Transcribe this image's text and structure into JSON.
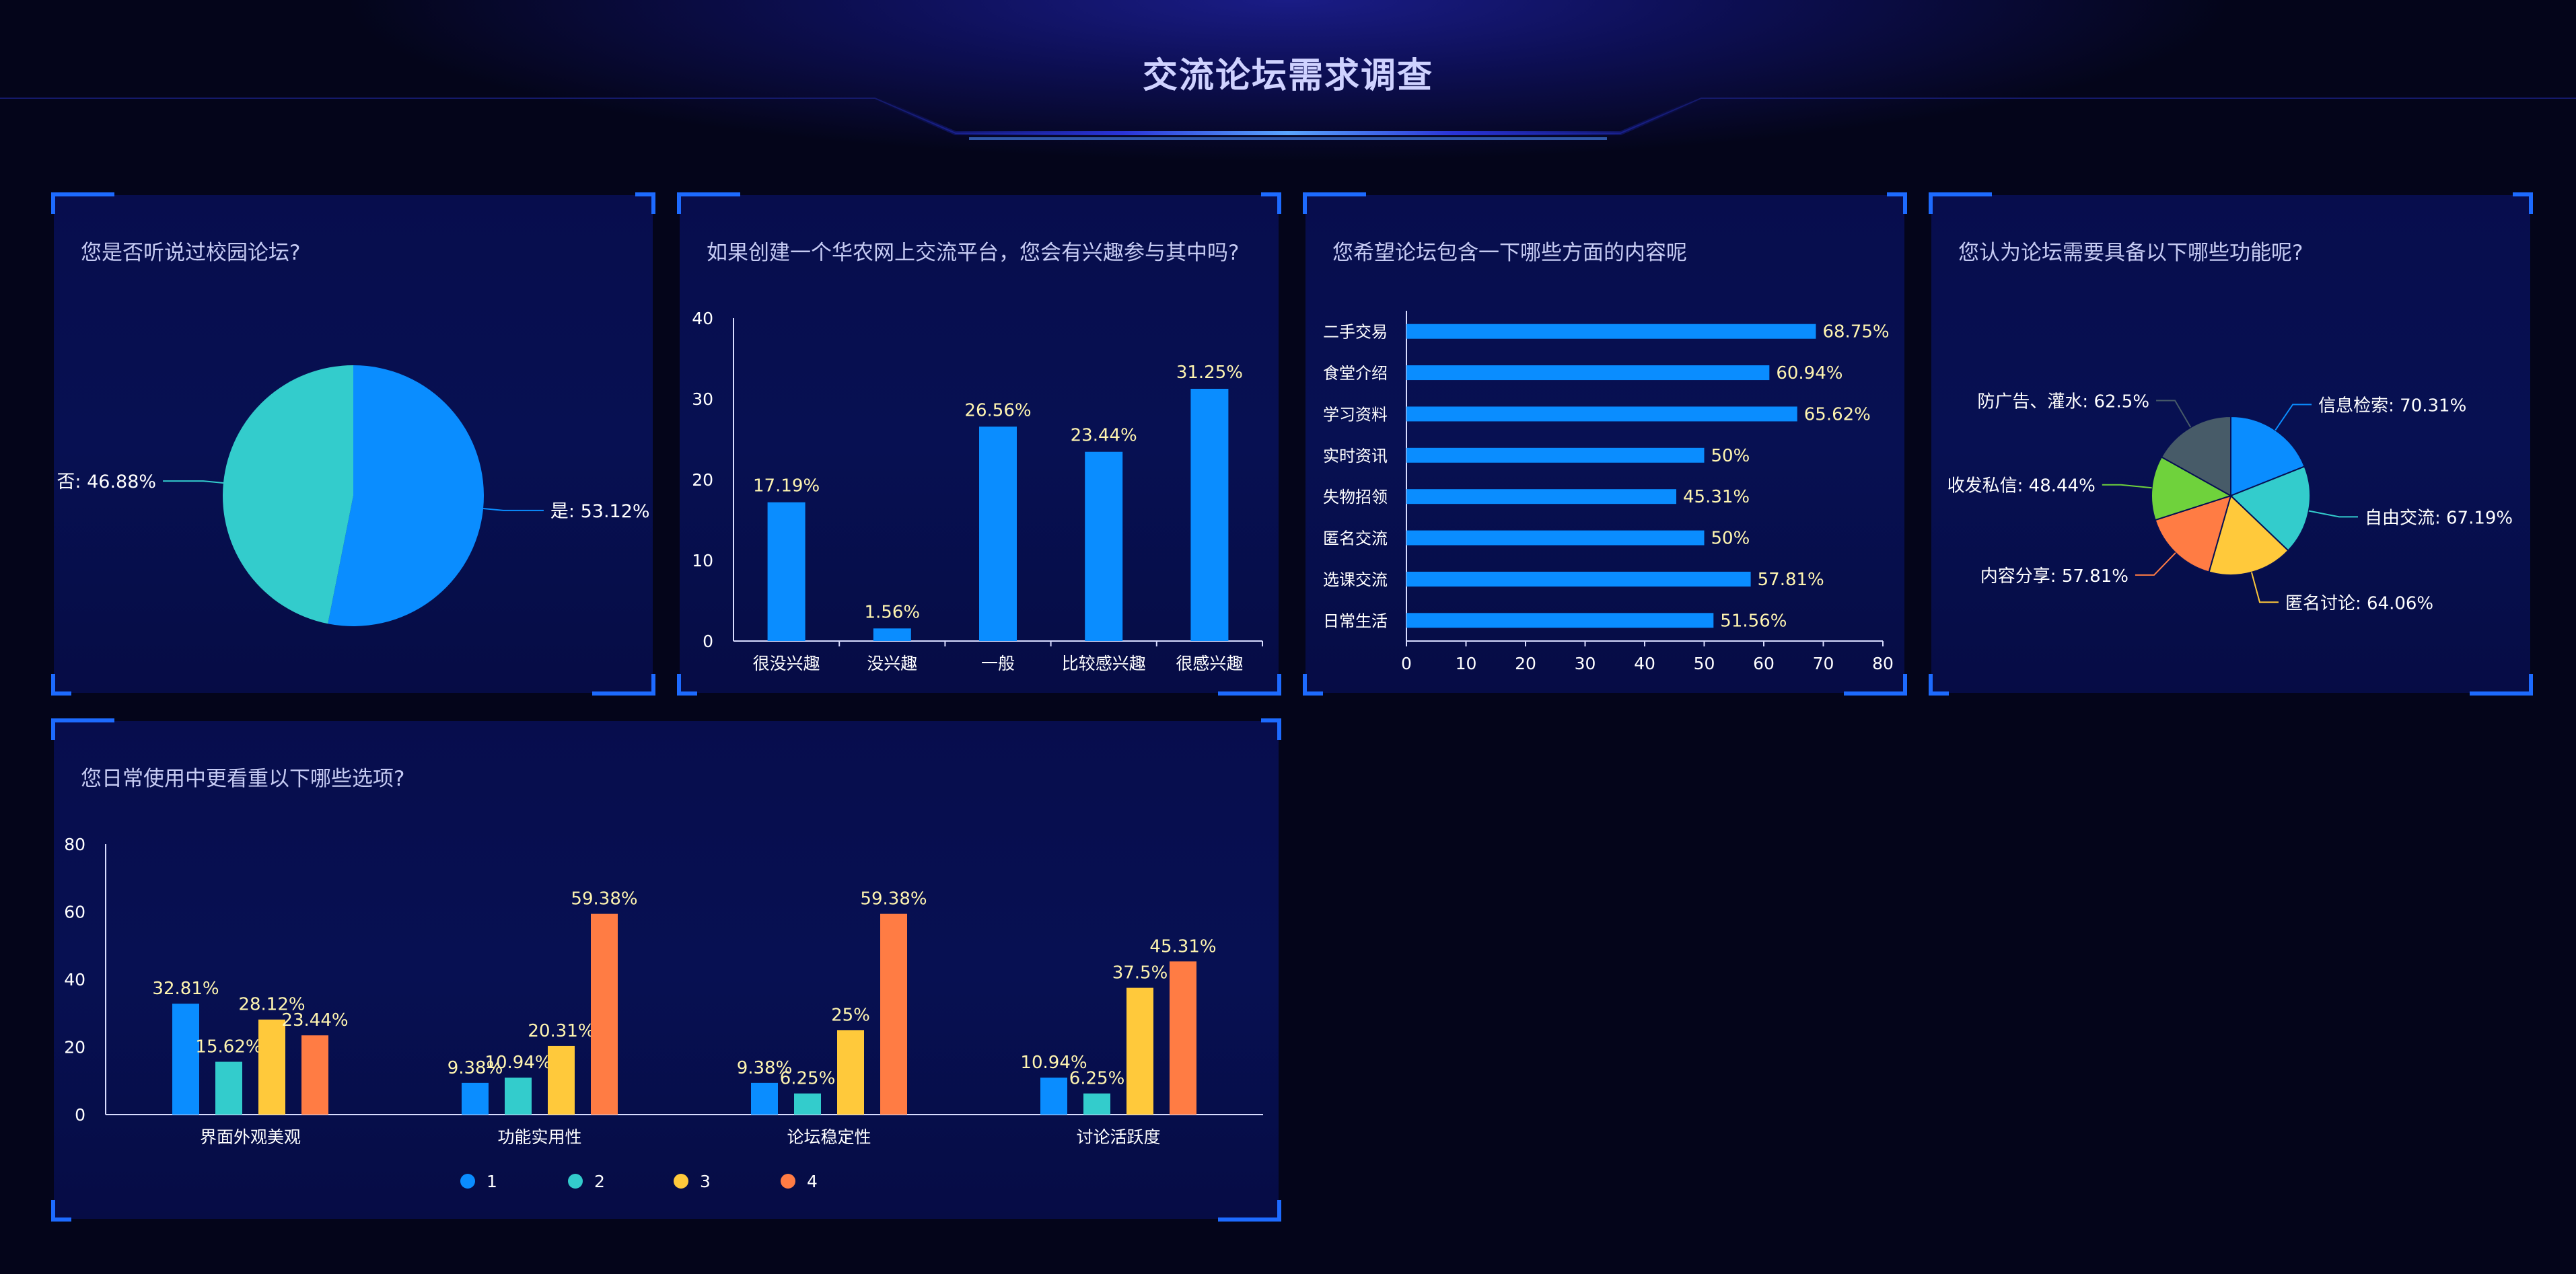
{
  "page_title": "交流论坛需求调查",
  "colors": {
    "blue": "#0a8dff",
    "teal": "#33cccc",
    "yellow": "#ffc93b",
    "orange": "#ff7c44",
    "green": "#6fd23c",
    "slate": "#475b68",
    "accent": "#1d6bff"
  },
  "panels": {
    "p1": {
      "title": "您是否听说过校园论坛?"
    },
    "p2": {
      "title": "如果创建一个华农网上交流平台，您会有兴趣参与其中吗?"
    },
    "p3": {
      "title": "您希望论坛包含一下哪些方面的内容呢"
    },
    "p4": {
      "title": "您认为论坛需要具备以下哪些功能呢?"
    },
    "p5": {
      "title": "您日常使用中更看重以下哪些选项?"
    }
  },
  "chart_data": [
    {
      "id": "p1",
      "type": "pie",
      "slices": [
        {
          "label": "是",
          "value": 53.12,
          "display": "是: 53.12%",
          "color": "#0a8dff"
        },
        {
          "label": "否",
          "value": 46.88,
          "display": "否: 46.88%",
          "color": "#33cccc"
        }
      ]
    },
    {
      "id": "p2",
      "type": "bar",
      "categories": [
        "很没兴趣",
        "没兴趣",
        "一般",
        "比较感兴趣",
        "很感兴趣"
      ],
      "values": [
        17.19,
        1.56,
        26.56,
        23.44,
        31.25
      ],
      "value_labels": [
        "17.19%",
        "1.56%",
        "26.56%",
        "23.44%",
        "31.25%"
      ],
      "ylim": [
        0,
        40
      ],
      "yticks": [
        0,
        10,
        20,
        30,
        40
      ],
      "ytick_labels": [
        "0",
        "10",
        "20",
        "30",
        "40"
      ],
      "color": "#0a8dff"
    },
    {
      "id": "p3",
      "type": "bar",
      "orientation": "horizontal",
      "categories": [
        "二手交易",
        "食堂介绍",
        "学习资料",
        "实时资讯",
        "失物招领",
        "匿名交流",
        "选课交流",
        "日常生活"
      ],
      "values": [
        68.75,
        60.94,
        65.62,
        50,
        45.31,
        50,
        57.81,
        51.56
      ],
      "value_labels": [
        "68.75%",
        "60.94%",
        "65.62%",
        "50%",
        "45.31%",
        "50%",
        "57.81%",
        "51.56%"
      ],
      "xlim": [
        0,
        80
      ],
      "xticks": [
        0,
        10,
        20,
        30,
        40,
        50,
        60,
        70,
        80
      ],
      "xtick_labels": [
        "0",
        "10",
        "20",
        "30",
        "40",
        "50",
        "60",
        "70",
        "80"
      ],
      "color": "#0a8dff"
    },
    {
      "id": "p4",
      "type": "pie",
      "slices": [
        {
          "label": "信息检索",
          "value": 70.31,
          "display": "信息检索: 70.31%",
          "color": "#0a8dff"
        },
        {
          "label": "自由交流",
          "value": 67.19,
          "display": "自由交流: 67.19%",
          "color": "#33cccc"
        },
        {
          "label": "匿名讨论",
          "value": 64.06,
          "display": "匿名讨论: 64.06%",
          "color": "#ffc93b"
        },
        {
          "label": "内容分享",
          "value": 57.81,
          "display": "内容分享: 57.81%",
          "color": "#ff7c44"
        },
        {
          "label": "收发私信",
          "value": 48.44,
          "display": "收发私信: 48.44%",
          "color": "#6fd23c"
        },
        {
          "label": "防广告、灌水",
          "value": 62.5,
          "display": "防广告、灌水: 62.5%",
          "color": "#475b68"
        }
      ]
    },
    {
      "id": "p5",
      "type": "bar",
      "categories": [
        "界面外观美观",
        "功能实用性",
        "论坛稳定性",
        "讨论活跃度"
      ],
      "series": [
        {
          "name": "1",
          "values": [
            32.81,
            9.38,
            9.38,
            10.94
          ],
          "labels": [
            "32.81%",
            "9.38%",
            "9.38%",
            "10.94%"
          ],
          "color": "#0a8dff"
        },
        {
          "name": "2",
          "values": [
            15.62,
            10.94,
            6.25,
            6.25
          ],
          "labels": [
            "15.62%",
            "10.94%",
            "6.25%",
            "6.25%"
          ],
          "color": "#33cccc"
        },
        {
          "name": "3",
          "values": [
            28.12,
            20.31,
            25,
            37.5
          ],
          "labels": [
            "28.12%",
            "20.31%",
            "25%",
            "37.5%"
          ],
          "color": "#ffc93b"
        },
        {
          "name": "4",
          "values": [
            23.44,
            59.38,
            59.38,
            45.31
          ],
          "labels": [
            "23.44%",
            "59.38%",
            "59.38%",
            "45.31%"
          ],
          "color": "#ff7c44"
        }
      ],
      "ylim": [
        0,
        80
      ],
      "yticks": [
        0,
        20,
        40,
        60,
        80
      ],
      "ytick_labels": [
        "0",
        "20",
        "40",
        "60",
        "80"
      ],
      "legend": "bottom"
    }
  ]
}
